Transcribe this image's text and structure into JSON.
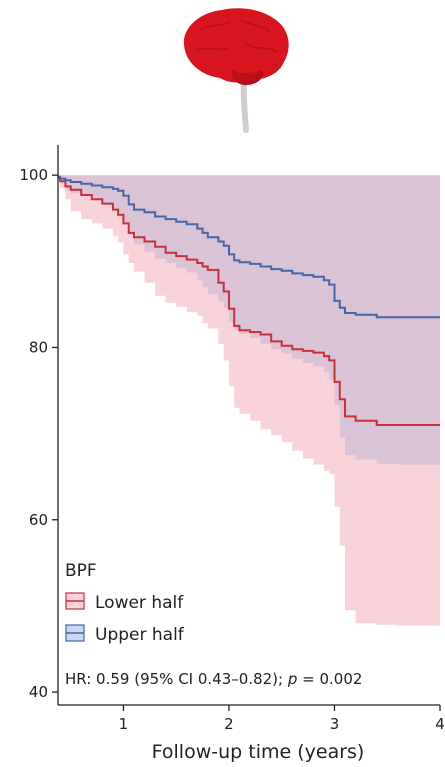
{
  "chart_data": {
    "type": "area",
    "title": "",
    "xlabel": "Follow-up time (years)",
    "ylabel": "",
    "xlim": [
      0.38,
      4.0
    ],
    "ylim": [
      38.5,
      103.5
    ],
    "x_ticks": [
      "1",
      "2",
      "3",
      "4"
    ],
    "y_ticks": [
      "40",
      "60",
      "80",
      "100"
    ],
    "legend": {
      "title": "BPF",
      "position": "bottom-left",
      "entries": [
        "Lower half",
        "Upper half"
      ]
    },
    "annotation": {
      "prefix": "HR: 0.59 (95% CI 0.43–0.82); ",
      "italic": "p",
      "suffix": " = 0.002"
    },
    "colors": {
      "lower": "#c8313a",
      "lower_band": "#f9d3da",
      "upper": "#4a64a8",
      "upper_band": "#d5c0d5"
    },
    "series": [
      {
        "name": "Lower half",
        "color": "#c8313a",
        "x": [
          0.38,
          0.4,
          0.45,
          0.5,
          0.6,
          0.7,
          0.8,
          0.9,
          0.95,
          1.0,
          1.05,
          1.1,
          1.2,
          1.3,
          1.4,
          1.5,
          1.6,
          1.7,
          1.75,
          1.8,
          1.9,
          1.95,
          2.0,
          2.05,
          2.1,
          2.2,
          2.3,
          2.4,
          2.5,
          2.6,
          2.7,
          2.8,
          2.9,
          2.95,
          3.0,
          3.05,
          3.1,
          3.2,
          3.4,
          3.6,
          3.8,
          4.0
        ],
        "y": [
          99.7,
          99.3,
          98.7,
          98.3,
          97.7,
          97.2,
          96.7,
          96.0,
          95.4,
          94.4,
          93.3,
          92.8,
          92.3,
          91.7,
          91.0,
          90.6,
          90.2,
          89.8,
          89.4,
          89.0,
          87.5,
          86.5,
          84.5,
          82.5,
          82.0,
          81.8,
          81.5,
          80.7,
          80.2,
          79.8,
          79.6,
          79.4,
          79.0,
          78.5,
          76.0,
          74.0,
          72.0,
          71.5,
          71.0,
          71.0,
          71.0,
          71.0
        ],
        "ci_low": [
          99.4,
          98.5,
          97.2,
          95.8,
          94.9,
          94.4,
          93.8,
          92.9,
          92.2,
          90.8,
          89.8,
          88.8,
          87.5,
          86.0,
          85.2,
          84.7,
          84.1,
          83.7,
          82.8,
          82.2,
          80.4,
          78.5,
          75.5,
          73.0,
          72.3,
          71.5,
          70.5,
          69.8,
          69.0,
          68.0,
          67.1,
          66.4,
          65.7,
          65.3,
          61.5,
          57.0,
          49.5,
          48.0,
          47.8,
          47.7,
          47.7,
          47.7
        ],
        "ci_high": [
          100,
          100,
          100,
          100,
          100,
          100,
          100,
          100,
          100,
          100,
          100,
          100,
          100,
          100,
          100,
          100,
          100,
          100,
          100,
          100,
          100,
          100,
          100,
          100,
          100,
          100,
          100,
          100,
          100,
          100,
          100,
          100,
          100,
          100,
          100,
          100,
          100,
          100,
          100,
          100,
          100,
          100
        ]
      },
      {
        "name": "Upper half",
        "color": "#4a64a8",
        "x": [
          0.38,
          0.4,
          0.45,
          0.5,
          0.6,
          0.7,
          0.8,
          0.9,
          0.95,
          1.0,
          1.05,
          1.1,
          1.2,
          1.3,
          1.4,
          1.5,
          1.6,
          1.7,
          1.75,
          1.8,
          1.9,
          1.95,
          2.0,
          2.05,
          2.1,
          2.2,
          2.3,
          2.4,
          2.5,
          2.6,
          2.7,
          2.8,
          2.9,
          2.95,
          3.0,
          3.05,
          3.1,
          3.2,
          3.4,
          3.6,
          3.8,
          4.0
        ],
        "y": [
          99.8,
          99.6,
          99.4,
          99.2,
          99.0,
          98.8,
          98.6,
          98.4,
          98.2,
          97.6,
          96.6,
          96.0,
          95.7,
          95.2,
          94.9,
          94.6,
          94.3,
          93.8,
          93.3,
          92.8,
          92.3,
          91.8,
          90.8,
          90.1,
          89.9,
          89.7,
          89.4,
          89.1,
          88.9,
          88.6,
          88.4,
          88.2,
          87.8,
          87.3,
          85.4,
          84.6,
          84.0,
          83.8,
          83.5,
          83.5,
          83.5,
          83.5
        ],
        "ci_low": [
          99.6,
          99.0,
          98.3,
          97.9,
          97.6,
          97.2,
          96.7,
          96.1,
          95.6,
          94.5,
          93.1,
          92.0,
          91.1,
          90.3,
          89.8,
          89.2,
          88.7,
          87.8,
          87.0,
          86.2,
          85.3,
          84.6,
          83.0,
          82.0,
          81.6,
          81.1,
          80.4,
          79.8,
          79.3,
          78.7,
          78.2,
          77.8,
          77.1,
          76.3,
          73.3,
          69.5,
          67.5,
          67.0,
          66.5,
          66.4,
          66.4,
          66.4
        ],
        "ci_high": [
          100,
          100,
          100,
          100,
          100,
          100,
          100,
          100,
          100,
          100,
          100,
          100,
          100,
          100,
          100,
          100,
          100,
          100,
          100,
          100,
          100,
          100,
          100,
          100,
          100,
          100,
          100,
          100,
          100,
          100,
          100,
          100,
          100,
          100,
          100,
          100,
          100,
          100,
          100,
          100,
          100,
          100
        ]
      }
    ]
  }
}
